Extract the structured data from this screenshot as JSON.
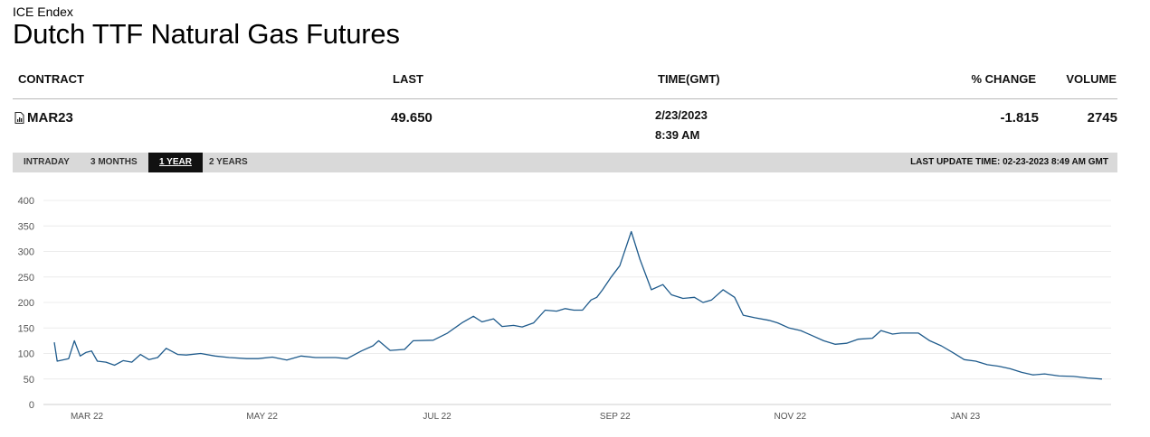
{
  "header": {
    "exchange": "ICE Endex",
    "title": "Dutch TTF Natural Gas Futures"
  },
  "quote": {
    "columns": [
      "CONTRACT",
      "LAST",
      "TIME(GMT)",
      "% CHANGE",
      "VOLUME"
    ],
    "contract": "MAR23",
    "contract_icon": "document-chart-icon",
    "last": "49.650",
    "date": "2/23/2023",
    "time": "8:39 AM",
    "pct_change": "-1.815",
    "volume": "2745"
  },
  "range_tabs": {
    "items": [
      "INTRADAY",
      "3 MONTHS",
      "1 YEAR",
      "2 YEARS"
    ],
    "active": "1 YEAR"
  },
  "last_update": "LAST UPDATE TIME: 02-23-2023 8:49 AM GMT",
  "colors": {
    "line": "#1f5b8c",
    "active_tab_bg": "#111111",
    "tab_bar_bg": "#d9d9d9"
  },
  "chart_data": {
    "type": "line",
    "title": "",
    "xlabel": "",
    "ylabel": "",
    "ylim": [
      0,
      400
    ],
    "yticks": [
      0,
      50,
      100,
      150,
      200,
      250,
      300,
      350,
      400
    ],
    "xlim": [
      "2022-02-23",
      "2023-02-23"
    ],
    "xticks": [
      {
        "date": "2022-03-01",
        "label": "MAR 22"
      },
      {
        "date": "2022-05-01",
        "label": "MAY 22"
      },
      {
        "date": "2022-07-01",
        "label": "JUL 22"
      },
      {
        "date": "2022-09-01",
        "label": "SEP 22"
      },
      {
        "date": "2022-11-01",
        "label": "NOV 22"
      },
      {
        "date": "2023-01-01",
        "label": "JAN 23"
      }
    ],
    "grid": true,
    "series": [
      {
        "x": [
          "2022-02-23",
          "2022-02-24",
          "2022-02-28",
          "2022-03-02",
          "2022-03-04",
          "2022-03-06",
          "2022-03-08",
          "2022-03-10",
          "2022-03-13",
          "2022-03-16",
          "2022-03-19",
          "2022-03-22",
          "2022-03-25",
          "2022-03-28",
          "2022-03-31",
          "2022-04-03",
          "2022-04-07",
          "2022-04-10",
          "2022-04-15",
          "2022-04-20",
          "2022-04-25",
          "2022-05-01",
          "2022-05-05",
          "2022-05-10",
          "2022-05-15",
          "2022-05-20",
          "2022-05-25",
          "2022-06-01",
          "2022-06-05",
          "2022-06-10",
          "2022-06-14",
          "2022-06-16",
          "2022-06-20",
          "2022-06-25",
          "2022-06-28",
          "2022-07-05",
          "2022-07-10",
          "2022-07-15",
          "2022-07-19",
          "2022-07-22",
          "2022-07-26",
          "2022-07-29",
          "2022-08-02",
          "2022-08-05",
          "2022-08-09",
          "2022-08-13",
          "2022-08-17",
          "2022-08-20",
          "2022-08-23",
          "2022-08-26",
          "2022-08-29",
          "2022-08-31",
          "2022-09-02",
          "2022-09-05",
          "2022-09-08",
          "2022-09-12",
          "2022-09-15",
          "2022-09-19",
          "2022-09-23",
          "2022-09-26",
          "2022-09-30",
          "2022-10-04",
          "2022-10-07",
          "2022-10-10",
          "2022-10-14",
          "2022-10-18",
          "2022-10-21",
          "2022-10-25",
          "2022-10-30",
          "2022-11-02",
          "2022-11-06",
          "2022-11-10",
          "2022-11-14",
          "2022-11-18",
          "2022-11-22",
          "2022-11-26",
          "2022-11-30",
          "2022-12-05",
          "2022-12-08",
          "2022-12-12",
          "2022-12-15",
          "2022-12-18",
          "2022-12-21",
          "2022-12-25",
          "2022-12-29",
          "2023-01-02",
          "2023-01-06",
          "2023-01-10",
          "2023-01-14",
          "2023-01-18",
          "2023-01-22",
          "2023-01-26",
          "2023-01-30",
          "2023-02-03",
          "2023-02-08",
          "2023-02-13",
          "2023-02-18",
          "2023-02-23"
        ],
        "values": [
          122,
          85,
          90,
          125,
          95,
          102,
          105,
          85,
          83,
          77,
          86,
          83,
          98,
          88,
          92,
          110,
          98,
          97,
          100,
          95,
          92,
          90,
          90,
          93,
          87,
          95,
          92,
          92,
          90,
          105,
          115,
          125,
          106,
          108,
          125,
          126,
          140,
          160,
          173,
          162,
          168,
          153,
          155,
          152,
          160,
          185,
          183,
          188,
          185,
          185,
          205,
          210,
          225,
          250,
          272,
          339,
          285,
          225,
          235,
          215,
          208,
          210,
          200,
          205,
          225,
          210,
          175,
          170,
          165,
          160,
          150,
          145,
          135,
          125,
          118,
          120,
          128,
          130,
          145,
          138,
          140,
          140,
          140,
          125,
          115,
          102,
          88,
          85,
          78,
          75,
          70,
          63,
          58,
          60,
          56,
          55,
          52,
          50
        ]
      }
    ]
  }
}
